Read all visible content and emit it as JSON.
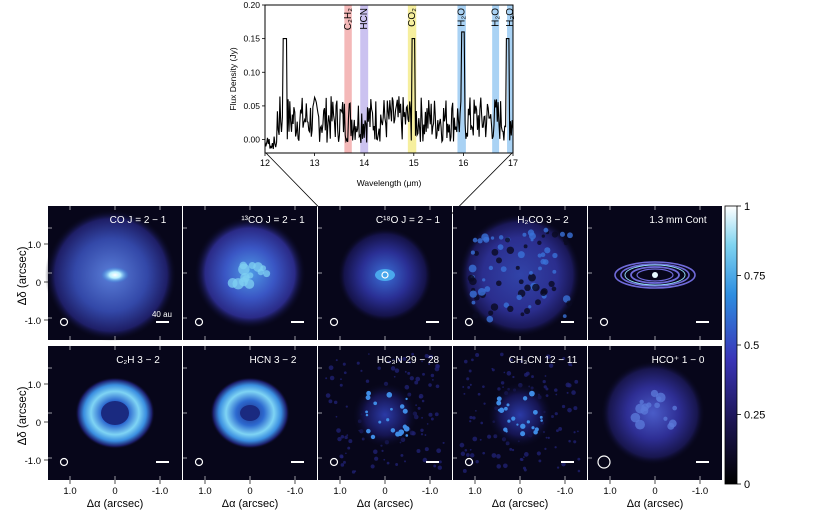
{
  "spectrum": {
    "ylabel": "Flux Density (Jy)",
    "xlabel": "Wavelength (μm)",
    "xlim": [
      12,
      17
    ],
    "ylim": [
      -0.02,
      0.2
    ],
    "xticks": [
      "12",
      "13",
      "14",
      "15",
      "16",
      "17"
    ],
    "yticks": [
      "0.00",
      "0.05",
      "0.10",
      "0.15",
      "0.20"
    ],
    "bands": [
      {
        "label": "C₂H₂",
        "from": 13.6,
        "to": 13.75,
        "color": "#f4b8b8"
      },
      {
        "label": "HCN",
        "from": 13.92,
        "to": 14.08,
        "color": "#cbc2f0"
      },
      {
        "label": "CO₂",
        "from": 14.88,
        "to": 15.05,
        "color": "#f6ef9e"
      },
      {
        "label": "H₂O",
        "from": 15.88,
        "to": 16.05,
        "color": "#a9d2f4"
      },
      {
        "label": "H₂O",
        "from": 16.58,
        "to": 16.72,
        "color": "#a9d2f4"
      },
      {
        "label": "H₂O",
        "from": 16.88,
        "to": 17.0,
        "color": "#a9d2f4"
      }
    ]
  },
  "panels_top": [
    {
      "label": "CO  J = 2 − 1",
      "type": "co"
    },
    {
      "label": "¹³CO  J = 2 − 1",
      "type": "13co"
    },
    {
      "label": "C¹⁸O  J = 2 − 1",
      "type": "c18o"
    },
    {
      "label": "H₂CO  3 − 2",
      "type": "h2co"
    },
    {
      "label": "1.3 mm Cont",
      "type": "cont"
    }
  ],
  "panels_bottom": [
    {
      "label": "C₂H  3 − 2",
      "type": "ring"
    },
    {
      "label": "HCN  3 − 2",
      "type": "ring2"
    },
    {
      "label": "HC₃N  29 − 28",
      "type": "faint"
    },
    {
      "label": "CH₃CN  12 − 11",
      "type": "faint2"
    },
    {
      "label": "HCO⁺  1 − 0",
      "type": "hco"
    }
  ],
  "scalebar_label": "40 au",
  "image_axes": {
    "ylabel": "Δδ (arcsec)",
    "xlabel": "Δα  (arcsec)",
    "yticks": [
      "1.0",
      "0",
      "-1.0"
    ],
    "xticks": [
      "1.0",
      "0",
      "-1.0"
    ]
  },
  "colorbar": {
    "ticks": [
      "1",
      "0.75",
      "0.5",
      "0.25",
      "0"
    ],
    "colors": [
      "#000000",
      "#1b1450",
      "#3a35b8",
      "#2d8de0",
      "#7fd4f0",
      "#ffffff"
    ]
  }
}
